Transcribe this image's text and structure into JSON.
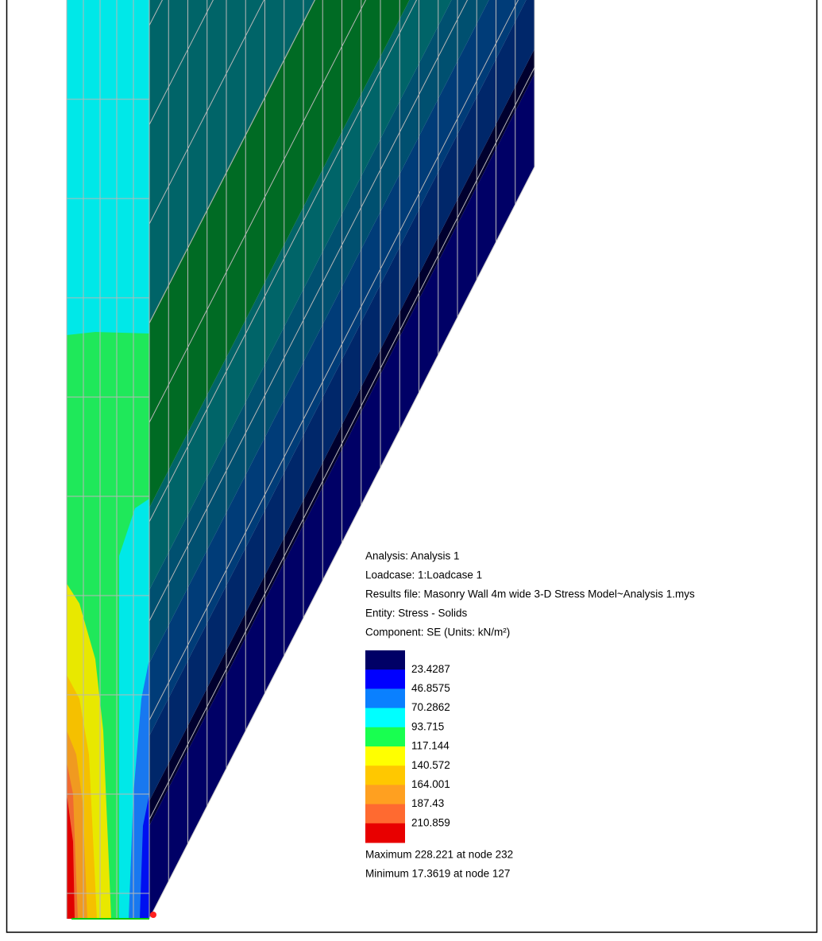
{
  "info": {
    "analysis": "Analysis: Analysis 1",
    "loadcase": "Loadcase: 1:Loadcase 1",
    "results_file": "Results file: Masonry Wall 4m wide 3-D Stress Model~Analysis 1.mys",
    "entity": "Entity: Stress - Solids",
    "component": "Component: SE (Units: kN/m²)"
  },
  "legend": {
    "labels": [
      23.4287,
      46.8575,
      70.2862,
      93.715,
      117.144,
      140.572,
      164.001,
      187.43,
      210.859
    ]
  },
  "extremes": {
    "maximum": "Maximum 228.221 at node 232",
    "minimum": "Minimum 17.3619 at node 127"
  }
}
